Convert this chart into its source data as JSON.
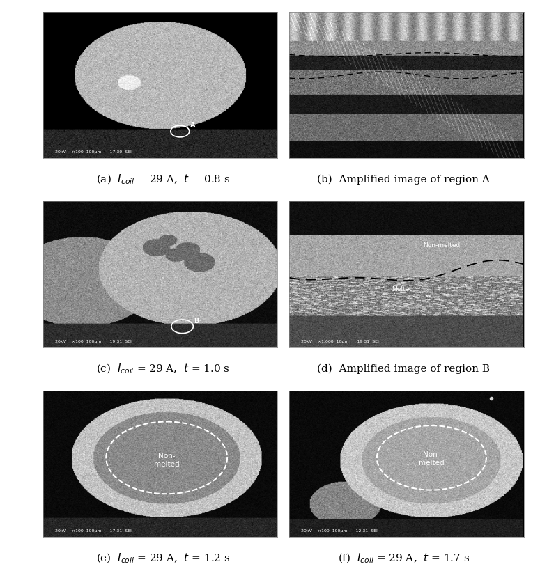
{
  "fig_width": 7.75,
  "fig_height": 8.43,
  "background_color": "#ffffff",
  "captions": [
    "(a)  $I_{coil}$ = 29 A,  $t$ = 0.8 s",
    "(b)  Amplified image of region A",
    "(c)  $I_{coil}$ = 29 A,  $t$ = 1.0 s",
    "(d)  Amplified image of region B",
    "(e)  $I_{coil}$ = 29 A,  $t$ = 1.2 s",
    "(f)  $I_{coil}$ = 29 A,  $t$ = 1.7 s"
  ],
  "caption_fontsize": 11
}
